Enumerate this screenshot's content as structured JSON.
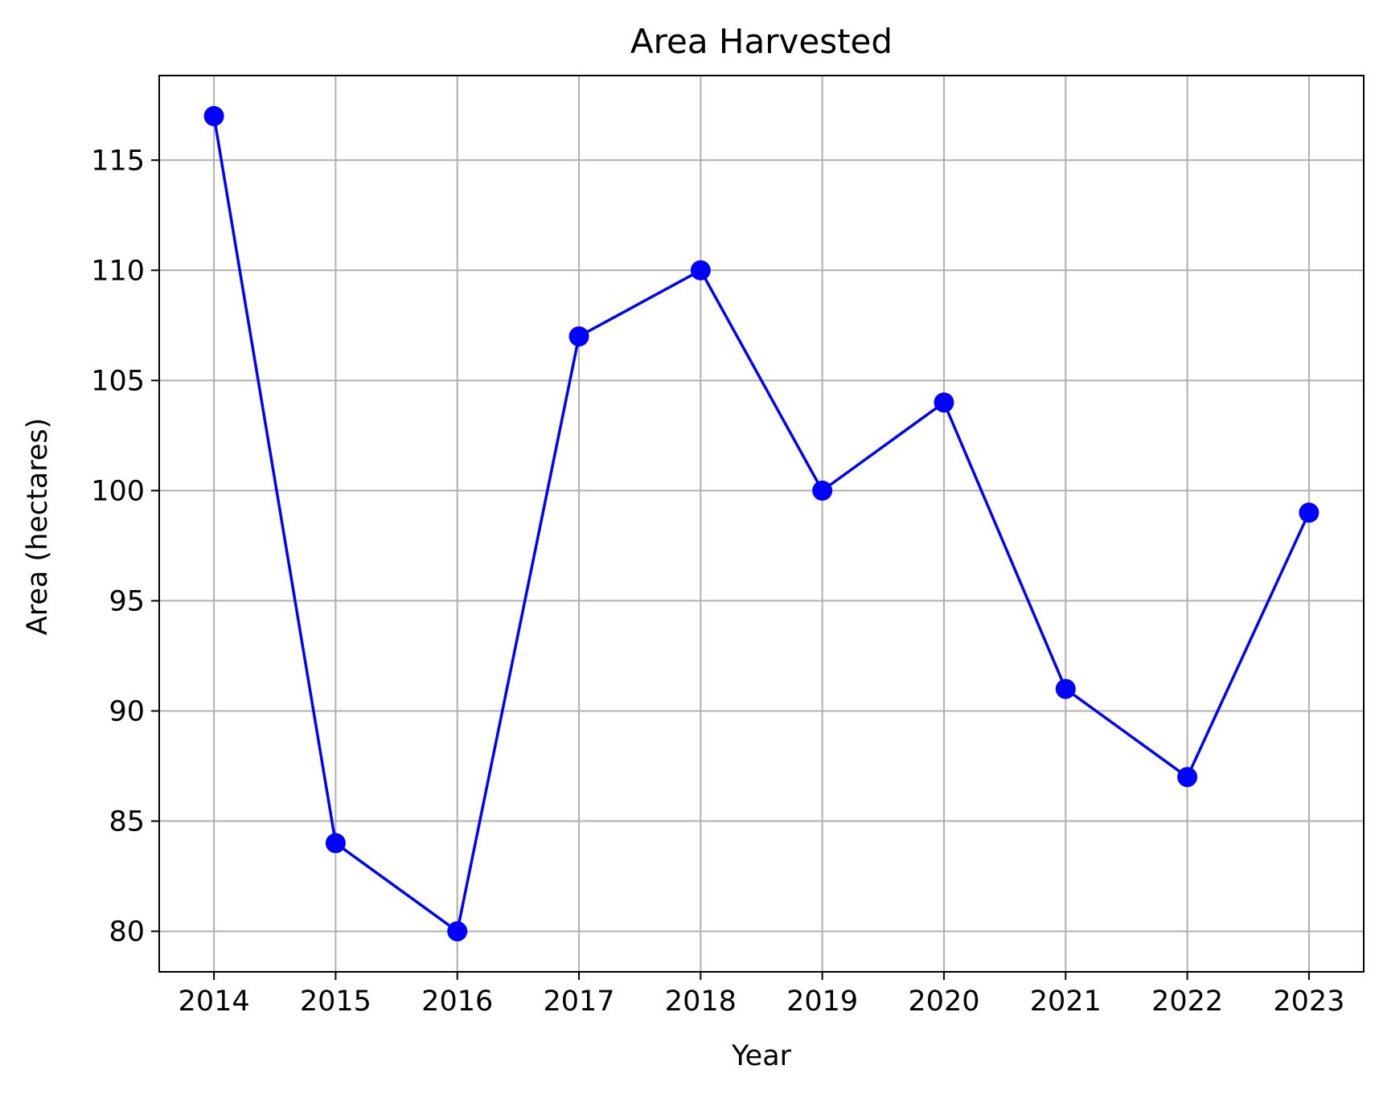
{
  "chart_data": {
    "type": "line",
    "title": "Area Harvested",
    "xlabel": "Year",
    "ylabel": "Area (hectares)",
    "x": [
      2014,
      2015,
      2016,
      2017,
      2018,
      2019,
      2020,
      2021,
      2022,
      2023
    ],
    "x_tick_labels": [
      "2014",
      "2015",
      "2016",
      "2017",
      "2018",
      "2019",
      "2020",
      "2021",
      "2022",
      "2023"
    ],
    "series": [
      {
        "values": [
          117,
          84,
          80,
          107,
          110,
          100,
          104,
          91,
          87,
          99
        ],
        "color": "#0000ff",
        "marker": "circle"
      }
    ],
    "y_ticks": [
      80,
      85,
      90,
      95,
      100,
      105,
      110,
      115
    ],
    "y_tick_labels": [
      "80",
      "85",
      "90",
      "95",
      "100",
      "105",
      "110",
      "115"
    ],
    "xlim": [
      2013.55,
      2023.45
    ],
    "ylim": [
      78.16,
      118.84
    ],
    "grid": true,
    "grid_color": "#b0b0b0"
  }
}
